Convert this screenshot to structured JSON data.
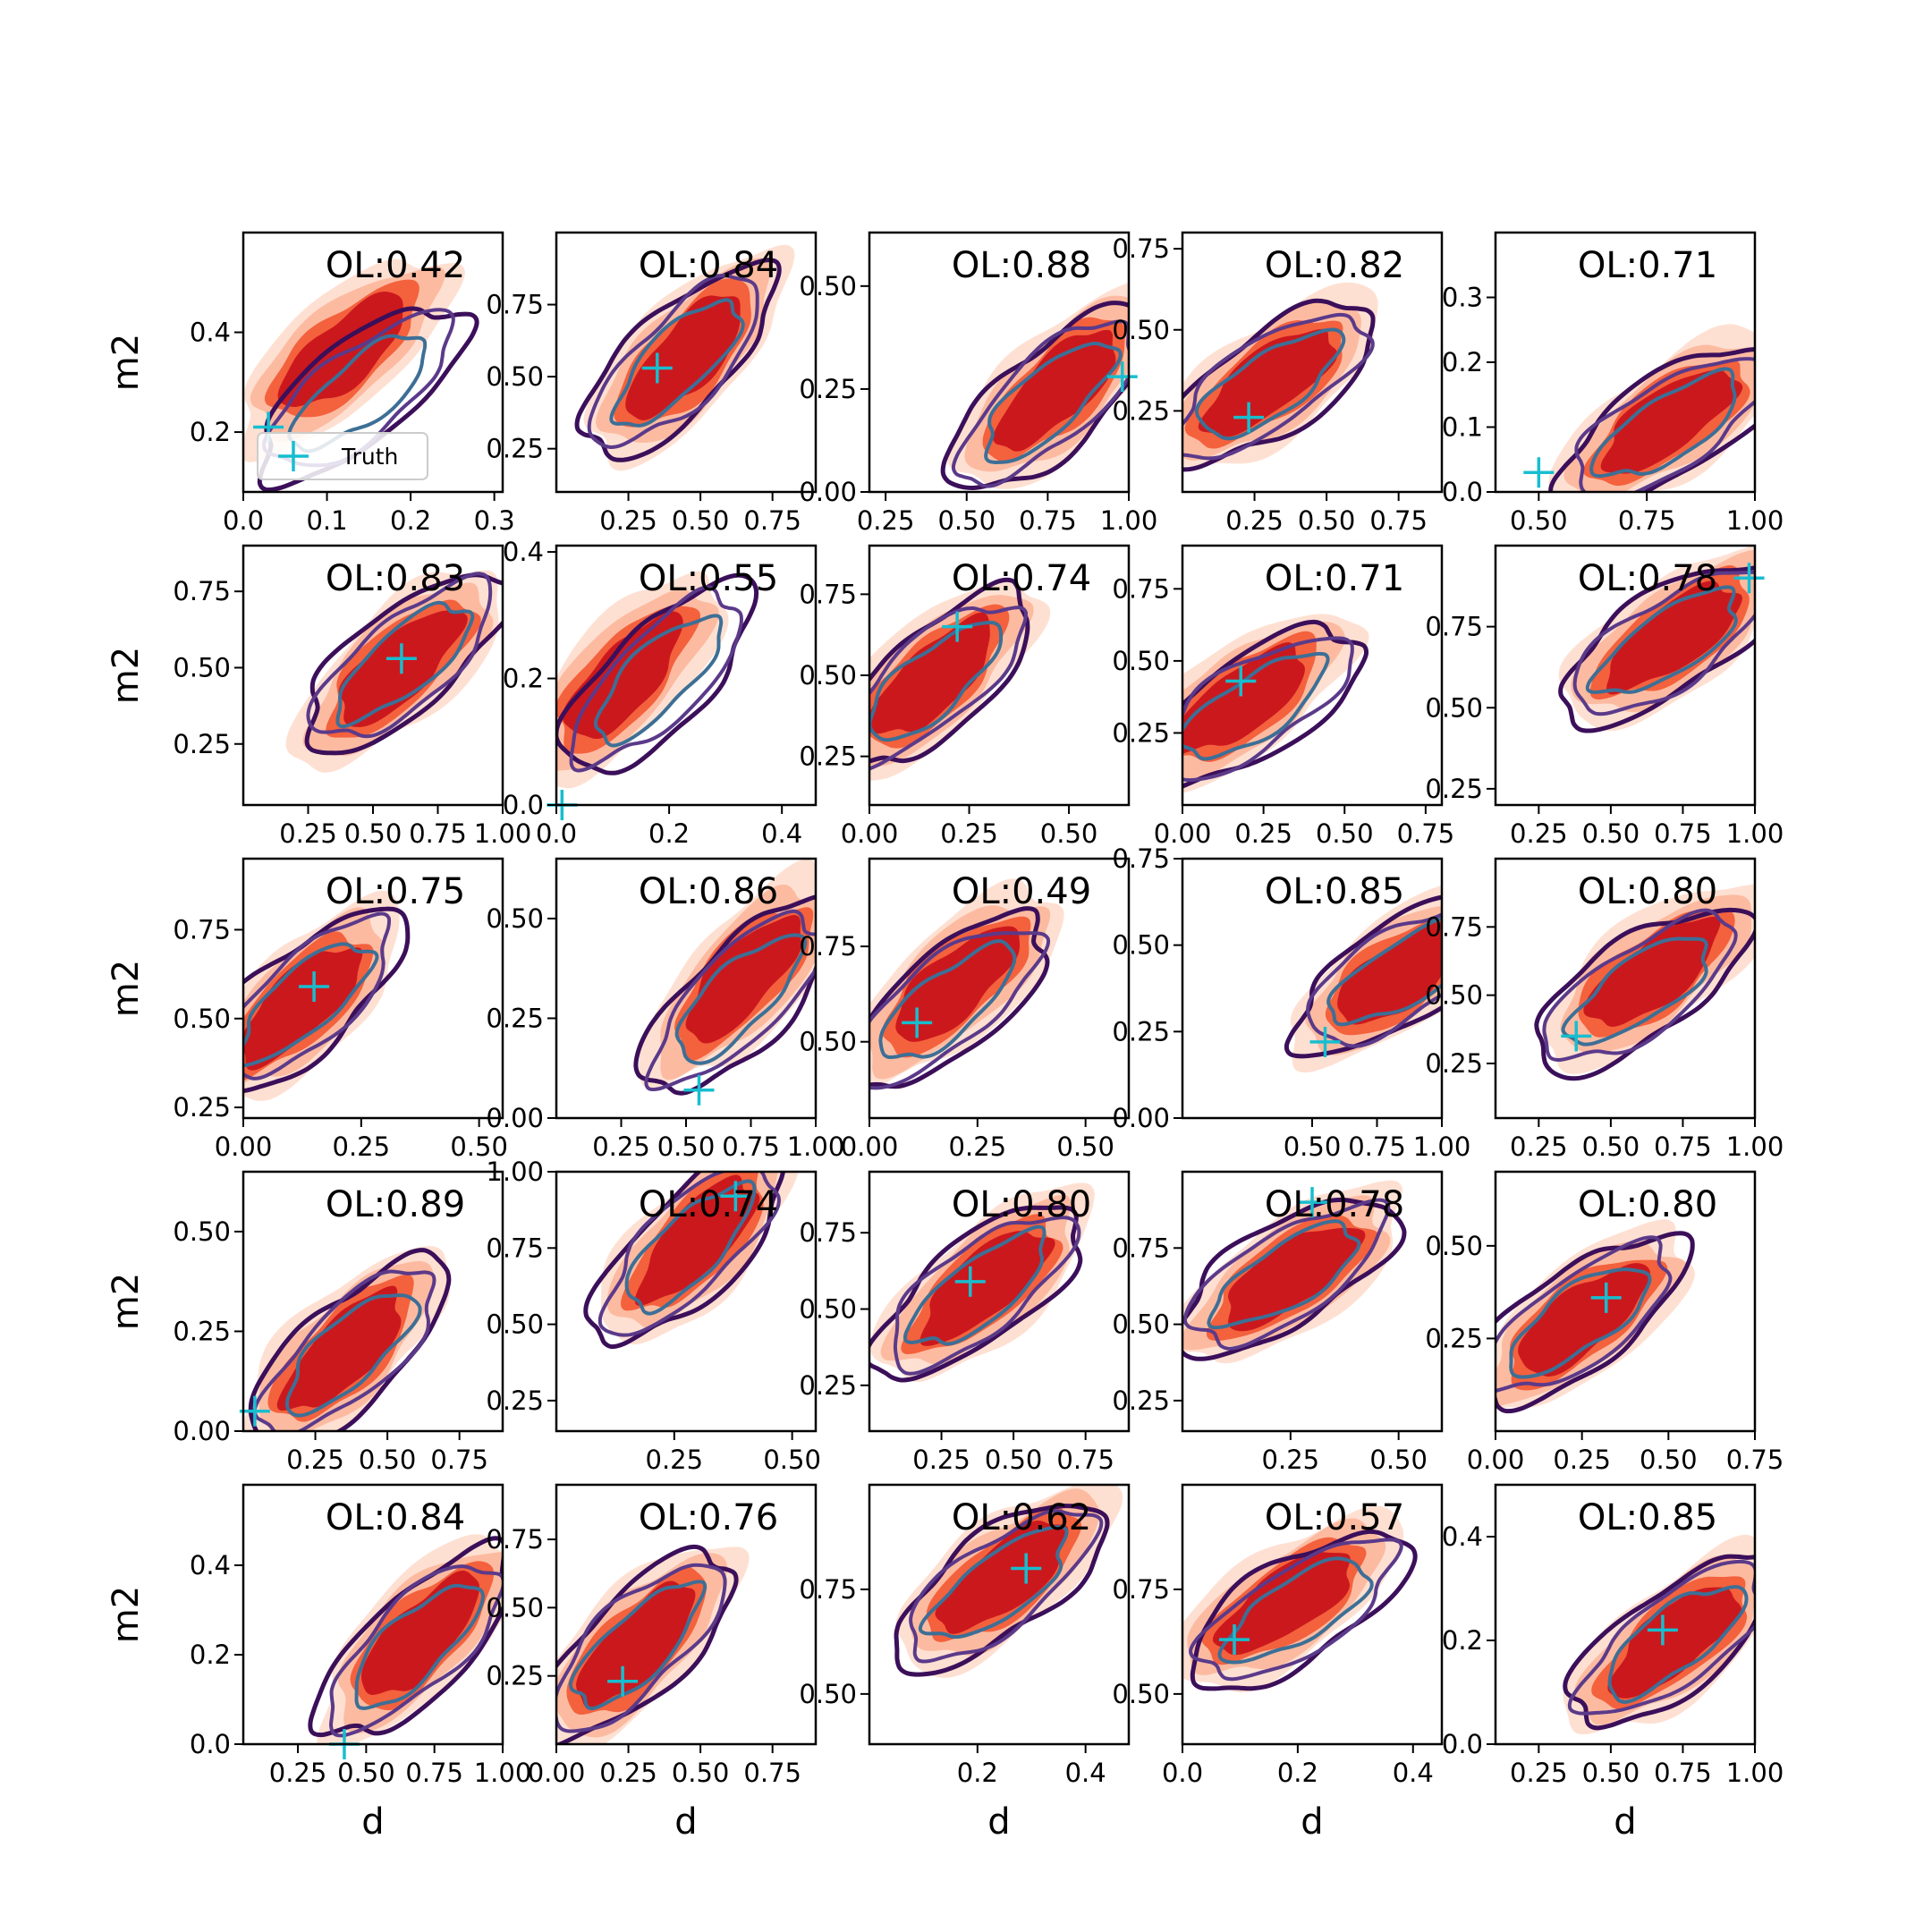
{
  "figure": {
    "xlabel": "d",
    "ylabel": "m2",
    "legend_label": "Truth",
    "truth_color": "#17becf",
    "filled_colors": [
      "#fee0d2",
      "#fcbba1",
      "#f4613d",
      "#cb181d"
    ],
    "line_colors": [
      "#3b0f5a",
      "#5b3a8a",
      "#3d6f96"
    ]
  },
  "chart_data": [
    {
      "type": "contour",
      "title": "OL:0.42",
      "xlim": [
        0,
        0.31
      ],
      "ylim": [
        0.08,
        0.6
      ],
      "xticks": [
        0.0,
        0.1,
        0.2,
        0.3
      ],
      "yticks": [
        0.2,
        0.4
      ],
      "ylabel": "m2",
      "truth": [
        0.03,
        0.21
      ],
      "filled": [
        0.12,
        0.36
      ],
      "lines": [
        0.14,
        0.28
      ],
      "legend": true
    },
    {
      "type": "contour",
      "title": "OL:0.84",
      "xlim": [
        0.0,
        0.9
      ],
      "ylim": [
        0.1,
        1.0
      ],
      "xticks": [
        0.25,
        0.5,
        0.75
      ],
      "yticks": [
        0.25,
        0.5,
        0.75
      ],
      "truth": [
        0.35,
        0.53
      ],
      "filled": [
        0.45,
        0.57
      ],
      "lines": [
        0.42,
        0.55
      ]
    },
    {
      "type": "contour",
      "title": "OL:0.88",
      "xlim": [
        0.2,
        1.0
      ],
      "ylim": [
        0.0,
        0.63
      ],
      "xticks": [
        0.25,
        0.5,
        0.75,
        1.0
      ],
      "yticks": [
        0.0,
        0.25,
        0.5
      ],
      "truth": [
        0.98,
        0.28
      ],
      "filled": [
        0.78,
        0.25
      ],
      "lines": [
        0.75,
        0.22
      ]
    },
    {
      "type": "contour",
      "title": "OL:0.82",
      "xlim": [
        0.0,
        0.9
      ],
      "ylim": [
        0.0,
        0.8
      ],
      "xticks": [
        0.25,
        0.5,
        0.75
      ],
      "yticks": [
        0.25,
        0.5,
        0.75
      ],
      "truth": [
        0.23,
        0.23
      ],
      "filled": [
        0.3,
        0.34
      ],
      "lines": [
        0.3,
        0.33
      ]
    },
    {
      "type": "contour",
      "title": "OL:0.71",
      "xlim": [
        0.4,
        1.0
      ],
      "ylim": [
        0.0,
        0.4
      ],
      "xticks": [
        0.5,
        0.75,
        1.0
      ],
      "yticks": [
        0.0,
        0.1,
        0.2,
        0.3
      ],
      "truth": [
        0.5,
        0.03
      ],
      "filled": [
        0.8,
        0.11
      ],
      "lines": [
        0.8,
        0.1
      ]
    },
    {
      "type": "contour",
      "title": "OL:0.83",
      "xlim": [
        0.0,
        1.0
      ],
      "ylim": [
        0.05,
        0.9
      ],
      "xticks": [
        0.25,
        0.5,
        0.75,
        1.0
      ],
      "yticks": [
        0.25,
        0.5,
        0.75
      ],
      "ylabel": "m2",
      "truth": [
        0.61,
        0.53
      ],
      "filled": [
        0.6,
        0.5
      ],
      "lines": [
        0.62,
        0.52
      ]
    },
    {
      "type": "contour",
      "title": "OL:0.55",
      "xlim": [
        0.0,
        0.46
      ],
      "ylim": [
        0.0,
        0.41
      ],
      "xticks": [
        0.0,
        0.2,
        0.4
      ],
      "yticks": [
        0.0,
        0.2,
        0.4
      ],
      "truth": [
        0.01,
        0.0
      ],
      "filled": [
        0.12,
        0.2
      ],
      "lines": [
        0.18,
        0.2
      ]
    },
    {
      "type": "contour",
      "title": "OL:0.74",
      "xlim": [
        0.0,
        0.65
      ],
      "ylim": [
        0.1,
        0.9
      ],
      "xticks": [
        0.0,
        0.25,
        0.5
      ],
      "yticks": [
        0.25,
        0.5,
        0.75
      ],
      "truth": [
        0.22,
        0.65
      ],
      "filled": [
        0.16,
        0.49
      ],
      "lines": [
        0.16,
        0.48
      ]
    },
    {
      "type": "contour",
      "title": "OL:0.71",
      "xlim": [
        0.0,
        0.8
      ],
      "ylim": [
        0.0,
        0.9
      ],
      "xticks": [
        0.0,
        0.25,
        0.5,
        0.75
      ],
      "yticks": [
        0.25,
        0.5,
        0.75
      ],
      "truth": [
        0.18,
        0.43
      ],
      "filled": [
        0.18,
        0.36
      ],
      "lines": [
        0.22,
        0.34
      ]
    },
    {
      "type": "contour",
      "title": "OL:0.78",
      "xlim": [
        0.1,
        1.0
      ],
      "ylim": [
        0.2,
        1.0
      ],
      "xticks": [
        0.25,
        0.5,
        0.75,
        1.0
      ],
      "yticks": [
        0.25,
        0.5,
        0.75
      ],
      "truth": [
        0.98,
        0.9
      ],
      "filled": [
        0.72,
        0.72
      ],
      "lines": [
        0.7,
        0.7
      ]
    },
    {
      "type": "contour",
      "title": "OL:0.75",
      "xlim": [
        0.0,
        0.55
      ],
      "ylim": [
        0.22,
        0.95
      ],
      "xticks": [
        0.0,
        0.25,
        0.5
      ],
      "yticks": [
        0.25,
        0.5,
        0.75
      ],
      "ylabel": "m2",
      "truth": [
        0.15,
        0.59
      ],
      "filled": [
        0.12,
        0.54
      ],
      "lines": [
        0.13,
        0.55
      ]
    },
    {
      "type": "contour",
      "title": "OL:0.86",
      "xlim": [
        0.0,
        1.0
      ],
      "ylim": [
        0.0,
        0.65
      ],
      "xticks": [
        0.25,
        0.5,
        0.75,
        1.0
      ],
      "yticks": [
        0.0,
        0.25,
        0.5
      ],
      "truth": [
        0.55,
        0.07
      ],
      "filled": [
        0.72,
        0.35
      ],
      "lines": [
        0.7,
        0.3
      ]
    },
    {
      "type": "contour",
      "title": "OL:0.49",
      "xlim": [
        0.0,
        0.6
      ],
      "ylim": [
        0.3,
        0.98
      ],
      "xticks": [
        0.0,
        0.25,
        0.5
      ],
      "yticks": [
        0.5,
        0.75
      ],
      "truth": [
        0.11,
        0.55
      ],
      "filled": [
        0.2,
        0.65
      ],
      "lines": [
        0.18,
        0.6
      ]
    },
    {
      "type": "contour",
      "title": "OL:0.85",
      "xlim": [
        0.0,
        1.0
      ],
      "ylim": [
        0.0,
        0.75
      ],
      "xticks": [
        0.5,
        0.75,
        1.0
      ],
      "yticks": [
        0.0,
        0.25,
        0.5,
        0.75
      ],
      "truth": [
        0.55,
        0.22
      ],
      "filled": [
        0.85,
        0.42
      ],
      "lines": [
        0.85,
        0.42
      ]
    },
    {
      "type": "contour",
      "title": "OL:0.80",
      "xlim": [
        0.1,
        1.0
      ],
      "ylim": [
        0.05,
        1.0
      ],
      "xticks": [
        0.25,
        0.5,
        0.75,
        1.0
      ],
      "yticks": [
        0.25,
        0.5,
        0.75
      ],
      "truth": [
        0.38,
        0.35
      ],
      "filled": [
        0.65,
        0.58
      ],
      "lines": [
        0.6,
        0.52
      ]
    },
    {
      "type": "contour",
      "title": "OL:0.89",
      "xlim": [
        0.0,
        0.9
      ],
      "ylim": [
        0.0,
        0.65
      ],
      "xticks": [
        0.25,
        0.5,
        0.75
      ],
      "yticks": [
        0.0,
        0.25,
        0.5
      ],
      "ylabel": "m2",
      "truth": [
        0.04,
        0.05
      ],
      "filled": [
        0.35,
        0.2
      ],
      "lines": [
        0.37,
        0.2
      ]
    },
    {
      "type": "contour",
      "title": "OL:0.74",
      "xlim": [
        0.0,
        0.55
      ],
      "ylim": [
        0.15,
        1.0
      ],
      "xticks": [
        0.25,
        0.5
      ],
      "yticks": [
        0.25,
        0.5,
        0.75,
        1.0
      ],
      "truth": [
        0.38,
        0.92
      ],
      "filled": [
        0.3,
        0.78
      ],
      "lines": [
        0.28,
        0.75
      ]
    },
    {
      "type": "contour",
      "title": "OL:0.80",
      "xlim": [
        0.0,
        0.9
      ],
      "ylim": [
        0.1,
        0.95
      ],
      "xticks": [
        0.25,
        0.5,
        0.75
      ],
      "yticks": [
        0.25,
        0.5,
        0.75
      ],
      "truth": [
        0.35,
        0.59
      ],
      "filled": [
        0.4,
        0.58
      ],
      "lines": [
        0.38,
        0.56
      ]
    },
    {
      "type": "contour",
      "title": "OL:0.78",
      "xlim": [
        0.0,
        0.6
      ],
      "ylim": [
        0.15,
        1.0
      ],
      "xticks": [
        0.25,
        0.5
      ],
      "yticks": [
        0.25,
        0.5,
        0.75
      ],
      "truth": [
        0.3,
        0.9
      ],
      "filled": [
        0.25,
        0.66
      ],
      "lines": [
        0.24,
        0.66
      ]
    },
    {
      "type": "contour",
      "title": "OL:0.80",
      "xlim": [
        0.0,
        0.75
      ],
      "ylim": [
        0.0,
        0.7
      ],
      "xticks": [
        0.0,
        0.25,
        0.5,
        0.75
      ],
      "yticks": [
        0.25,
        0.5
      ],
      "truth": [
        0.32,
        0.36
      ],
      "filled": [
        0.25,
        0.3
      ],
      "lines": [
        0.24,
        0.3
      ]
    },
    {
      "type": "contour",
      "title": "OL:0.84",
      "xlim": [
        0.05,
        1.0
      ],
      "ylim": [
        0.0,
        0.58
      ],
      "xticks": [
        0.25,
        0.5,
        0.75,
        1.0
      ],
      "yticks": [
        0.0,
        0.2,
        0.4
      ],
      "ylabel": "m2",
      "xlabel": "d",
      "truth": [
        0.42,
        0.0
      ],
      "filled": [
        0.7,
        0.24
      ],
      "lines": [
        0.68,
        0.22
      ]
    },
    {
      "type": "contour",
      "title": "OL:0.76",
      "xlim": [
        0.0,
        0.9
      ],
      "ylim": [
        0.0,
        0.95
      ],
      "xticks": [
        0.0,
        0.25,
        0.5,
        0.75
      ],
      "yticks": [
        0.25,
        0.5,
        0.75
      ],
      "xlabel": "d",
      "truth": [
        0.23,
        0.23
      ],
      "filled": [
        0.28,
        0.36
      ],
      "lines": [
        0.28,
        0.36
      ]
    },
    {
      "type": "contour",
      "title": "OL:0.62",
      "xlim": [
        0.0,
        0.48
      ],
      "ylim": [
        0.38,
        1.0
      ],
      "xticks": [
        0.2,
        0.4
      ],
      "yticks": [
        0.5,
        0.75
      ],
      "xlabel": "d",
      "truth": [
        0.29,
        0.8
      ],
      "filled": [
        0.25,
        0.78
      ],
      "lines": [
        0.24,
        0.76
      ]
    },
    {
      "type": "contour",
      "title": "OL:0.57",
      "xlim": [
        0.0,
        0.45
      ],
      "ylim": [
        0.38,
        1.0
      ],
      "xticks": [
        0.0,
        0.2,
        0.4
      ],
      "yticks": [
        0.5,
        0.75
      ],
      "xlabel": "d",
      "truth": [
        0.09,
        0.63
      ],
      "filled": [
        0.18,
        0.72
      ],
      "lines": [
        0.2,
        0.7
      ]
    },
    {
      "type": "contour",
      "title": "OL:0.85",
      "xlim": [
        0.1,
        1.0
      ],
      "ylim": [
        0.0,
        0.5
      ],
      "xticks": [
        0.25,
        0.5,
        0.75,
        1.0
      ],
      "yticks": [
        0.0,
        0.2,
        0.4
      ],
      "xlabel": "d",
      "truth": [
        0.68,
        0.22
      ],
      "filled": [
        0.72,
        0.2
      ],
      "lines": [
        0.72,
        0.2
      ]
    }
  ]
}
